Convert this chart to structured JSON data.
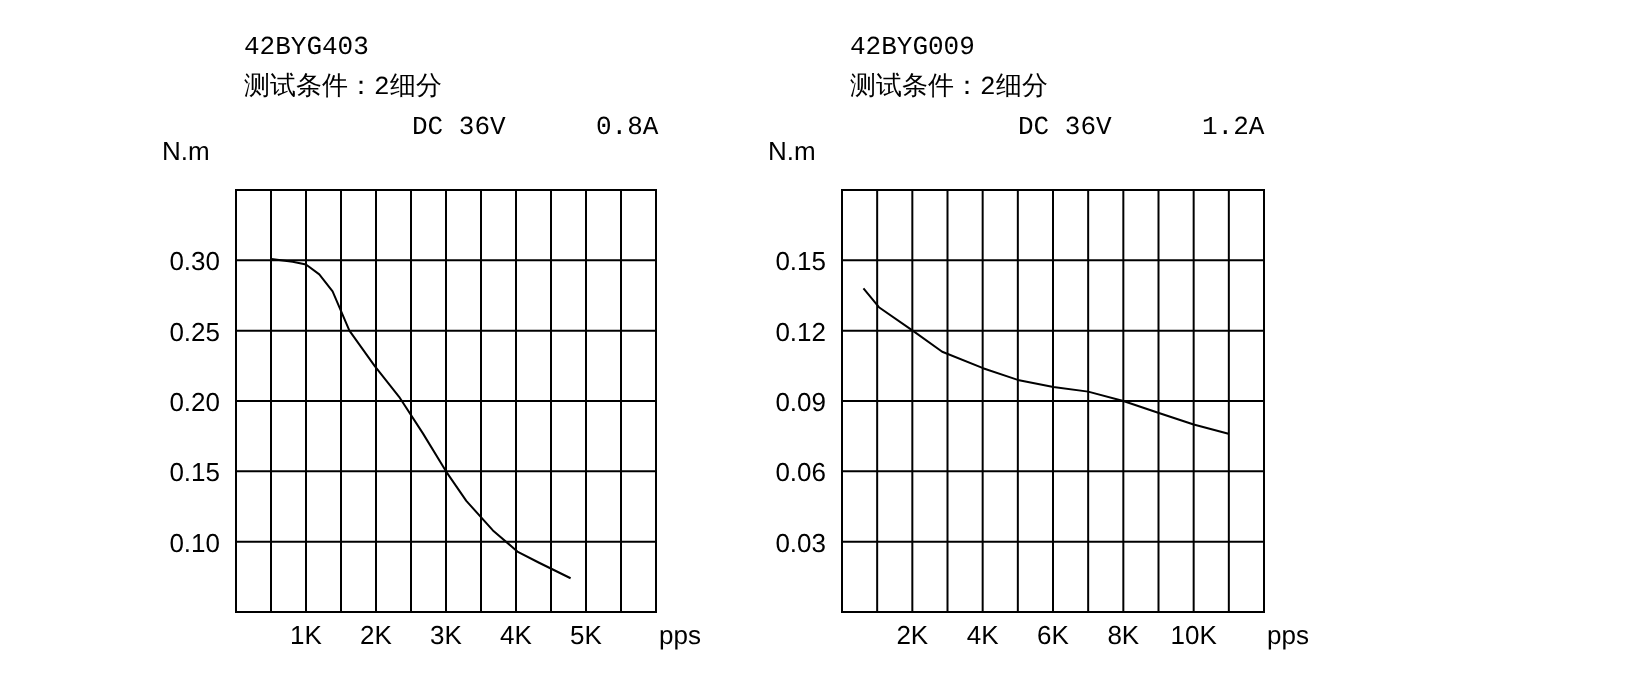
{
  "chart_data": [
    {
      "type": "line",
      "title": "42BYG403",
      "subtitle": "测试条件：2细分",
      "annotations": [
        "DC 36V",
        "0.8A"
      ],
      "ylabel": "N.m",
      "xlabel": "pps",
      "grid": true,
      "color": "#000000",
      "xlim": [
        0,
        6000
      ],
      "ylim": [
        0.05,
        0.35
      ],
      "xticks": [
        {
          "value": 500,
          "label": null
        },
        {
          "value": 1000,
          "label": "1K"
        },
        {
          "value": 1500,
          "label": null
        },
        {
          "value": 2000,
          "label": "2K"
        },
        {
          "value": 2500,
          "label": null
        },
        {
          "value": 3000,
          "label": "3K"
        },
        {
          "value": 3500,
          "label": null
        },
        {
          "value": 4000,
          "label": "4K"
        },
        {
          "value": 4500,
          "label": null
        },
        {
          "value": 5000,
          "label": "5K"
        },
        {
          "value": 5500,
          "label": null
        }
      ],
      "yticks": [
        {
          "value": 0.1,
          "label": "0.10"
        },
        {
          "value": 0.15,
          "label": "0.15"
        },
        {
          "value": 0.2,
          "label": "0.20"
        },
        {
          "value": 0.25,
          "label": "0.25"
        },
        {
          "value": 0.3,
          "label": "0.30"
        }
      ],
      "x": [
        505,
        810,
        1000,
        1190,
        1380,
        1620,
        1980,
        2330,
        2670,
        3000,
        3290,
        3670,
        4020,
        4330,
        4780
      ],
      "values": [
        0.301,
        0.299,
        0.297,
        0.29,
        0.278,
        0.25,
        0.225,
        0.203,
        0.177,
        0.15,
        0.129,
        0.108,
        0.093,
        0.085,
        0.074
      ]
    },
    {
      "type": "line",
      "title": "42BYG009",
      "subtitle": "测试条件：2细分",
      "annotations": [
        "DC 36V",
        "1.2A"
      ],
      "ylabel": "N.m",
      "xlabel": "pps",
      "grid": true,
      "color": "#000000",
      "xlim": [
        0,
        12000
      ],
      "ylim": [
        0,
        0.18
      ],
      "xticks": [
        {
          "value": 1000,
          "label": null
        },
        {
          "value": 2000,
          "label": "2K"
        },
        {
          "value": 3000,
          "label": null
        },
        {
          "value": 4000,
          "label": "4K"
        },
        {
          "value": 5000,
          "label": null
        },
        {
          "value": 6000,
          "label": "6K"
        },
        {
          "value": 7000,
          "label": null
        },
        {
          "value": 8000,
          "label": "8K"
        },
        {
          "value": 9000,
          "label": null
        },
        {
          "value": 10000,
          "label": "10K"
        },
        {
          "value": 11000,
          "label": null
        }
      ],
      "yticks": [
        {
          "value": 0.03,
          "label": "0.03"
        },
        {
          "value": 0.06,
          "label": "0.06"
        },
        {
          "value": 0.09,
          "label": "0.09"
        },
        {
          "value": 0.12,
          "label": "0.12"
        },
        {
          "value": 0.15,
          "label": "0.15"
        }
      ],
      "x": [
        610,
        1050,
        2010,
        2850,
        4010,
        5000,
        6010,
        7000,
        8000,
        8990,
        10000,
        10990
      ],
      "values": [
        0.138,
        0.13,
        0.12,
        0.111,
        0.104,
        0.099,
        0.096,
        0.094,
        0.09,
        0.085,
        0.08,
        0.076
      ]
    }
  ]
}
